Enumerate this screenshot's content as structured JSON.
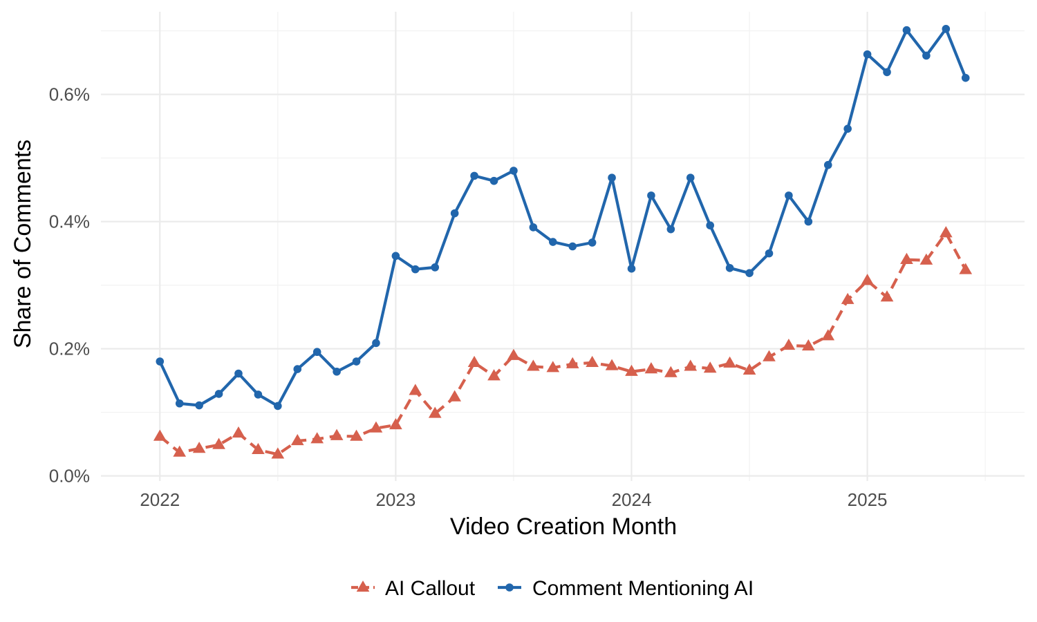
{
  "chart_data": {
    "type": "line",
    "title": "",
    "xlabel": "Video Creation Month",
    "ylabel": "Share of Comments",
    "x_tick_labels": [
      "2022",
      "2023",
      "2024",
      "2025"
    ],
    "x_tick_values": [
      "2022-01",
      "2023-01",
      "2024-01",
      "2025-01"
    ],
    "xlim": [
      "2021-10",
      "2025-09"
    ],
    "y_tick_labels": [
      "0.0%",
      "0.2%",
      "0.4%",
      "0.6%"
    ],
    "y_tick_values": [
      0.0,
      0.2,
      0.4,
      0.6
    ],
    "ylim": [
      -0.008,
      0.73
    ],
    "y_unit": "%",
    "grid": true,
    "legend_position": "bottom",
    "x": [
      "2022-01",
      "2022-02",
      "2022-03",
      "2022-04",
      "2022-05",
      "2022-06",
      "2022-07",
      "2022-08",
      "2022-09",
      "2022-10",
      "2022-11",
      "2022-12",
      "2023-01",
      "2023-02",
      "2023-03",
      "2023-04",
      "2023-05",
      "2023-06",
      "2023-07",
      "2023-08",
      "2023-09",
      "2023-10",
      "2023-11",
      "2023-12",
      "2024-01",
      "2024-02",
      "2024-03",
      "2024-04",
      "2024-05",
      "2024-06",
      "2024-07",
      "2024-08",
      "2024-09",
      "2024-10",
      "2024-11",
      "2024-12",
      "2025-01",
      "2025-02",
      "2025-03",
      "2025-04",
      "2025-05",
      "2025-06"
    ],
    "series": [
      {
        "name": "AI Callout",
        "color": "#d6604d",
        "line_style": "dashed",
        "marker": "triangle",
        "values": [
          0.062,
          0.037,
          0.043,
          0.049,
          0.067,
          0.041,
          0.034,
          0.055,
          0.058,
          0.063,
          0.062,
          0.075,
          0.08,
          0.134,
          0.098,
          0.124,
          0.178,
          0.157,
          0.189,
          0.172,
          0.17,
          0.176,
          0.178,
          0.173,
          0.164,
          0.168,
          0.162,
          0.172,
          0.169,
          0.177,
          0.166,
          0.187,
          0.205,
          0.204,
          0.22,
          0.277,
          0.307,
          0.281,
          0.34,
          0.339,
          0.382,
          0.324
        ]
      },
      {
        "name": "Comment Mentioning AI",
        "color": "#2166ac",
        "line_style": "solid",
        "marker": "circle",
        "values": [
          0.18,
          0.114,
          0.111,
          0.129,
          0.161,
          0.128,
          0.11,
          0.168,
          0.195,
          0.164,
          0.18,
          0.209,
          0.346,
          0.325,
          0.328,
          0.413,
          0.472,
          0.464,
          0.48,
          0.391,
          0.368,
          0.361,
          0.367,
          0.469,
          0.326,
          0.441,
          0.388,
          0.469,
          0.394,
          0.327,
          0.319,
          0.35,
          0.441,
          0.4,
          0.489,
          0.546,
          0.663,
          0.635,
          0.701,
          0.661,
          0.703,
          0.626
        ]
      }
    ]
  }
}
